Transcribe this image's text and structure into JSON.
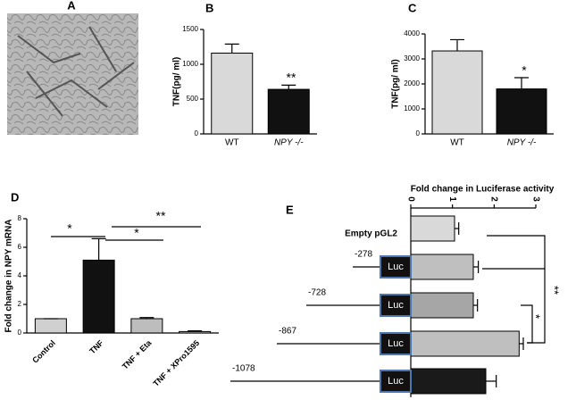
{
  "figure": {
    "panel_a_label": "A"
  },
  "chart_data": [
    {
      "type": "bar",
      "panel": "B",
      "ylabel": "TNF(pg/ ml)",
      "categories": [
        "WT",
        "NPY -/-"
      ],
      "values": [
        1160,
        640
      ],
      "errors": [
        130,
        60
      ],
      "colors": [
        "#d9d9d9",
        "#111111"
      ],
      "ylim": [
        0,
        1500
      ],
      "yticks": [
        0,
        500,
        1000,
        1500
      ],
      "annotations": [
        "**"
      ]
    },
    {
      "type": "bar",
      "panel": "C",
      "ylabel": "TNF(pg/ ml)",
      "categories": [
        "WT",
        "NPY -/-"
      ],
      "values": [
        3320,
        1800
      ],
      "errors": [
        450,
        450
      ],
      "colors": [
        "#d9d9d9",
        "#111111"
      ],
      "ylim": [
        0,
        4000
      ],
      "yticks": [
        0,
        1000,
        2000,
        3000,
        4000
      ],
      "annotations": [
        "*"
      ]
    },
    {
      "type": "bar",
      "panel": "D",
      "ylabel": "Fold change in NPY mRNA",
      "categories": [
        "Control",
        "TNF",
        "TNF + Eta",
        "TNF + XPro1595"
      ],
      "values": [
        1,
        5.1,
        1.0,
        0.1
      ],
      "errors": [
        0,
        1.5,
        0.08,
        0.05
      ],
      "colors": [
        "#d0d0d0",
        "#111111",
        "#bdbdbd",
        "#d0d0d0"
      ],
      "ylim": [
        0,
        8
      ],
      "yticks": [
        0,
        2,
        4,
        6,
        8
      ],
      "annotations": [
        "*",
        "*",
        "**"
      ]
    },
    {
      "type": "hbar",
      "panel": "E",
      "title": "Fold change in Luciferase activity",
      "categories": [
        "Empty pGL2",
        "-278",
        "-728",
        "-867",
        "-1078"
      ],
      "construct_label": "Luc",
      "values": [
        1.05,
        1.5,
        1.5,
        2.6,
        1.8
      ],
      "errors": [
        0.1,
        0.12,
        0.1,
        0.1,
        0.25
      ],
      "colors": [
        "#d9d9d9",
        "#bfbfbf",
        "#a6a6a6",
        "#bfbfbf",
        "#1a1a1a"
      ],
      "xlim": [
        0,
        3
      ],
      "xticks": [
        0,
        1,
        2,
        3
      ],
      "annotations": [
        "*",
        "**"
      ]
    }
  ]
}
